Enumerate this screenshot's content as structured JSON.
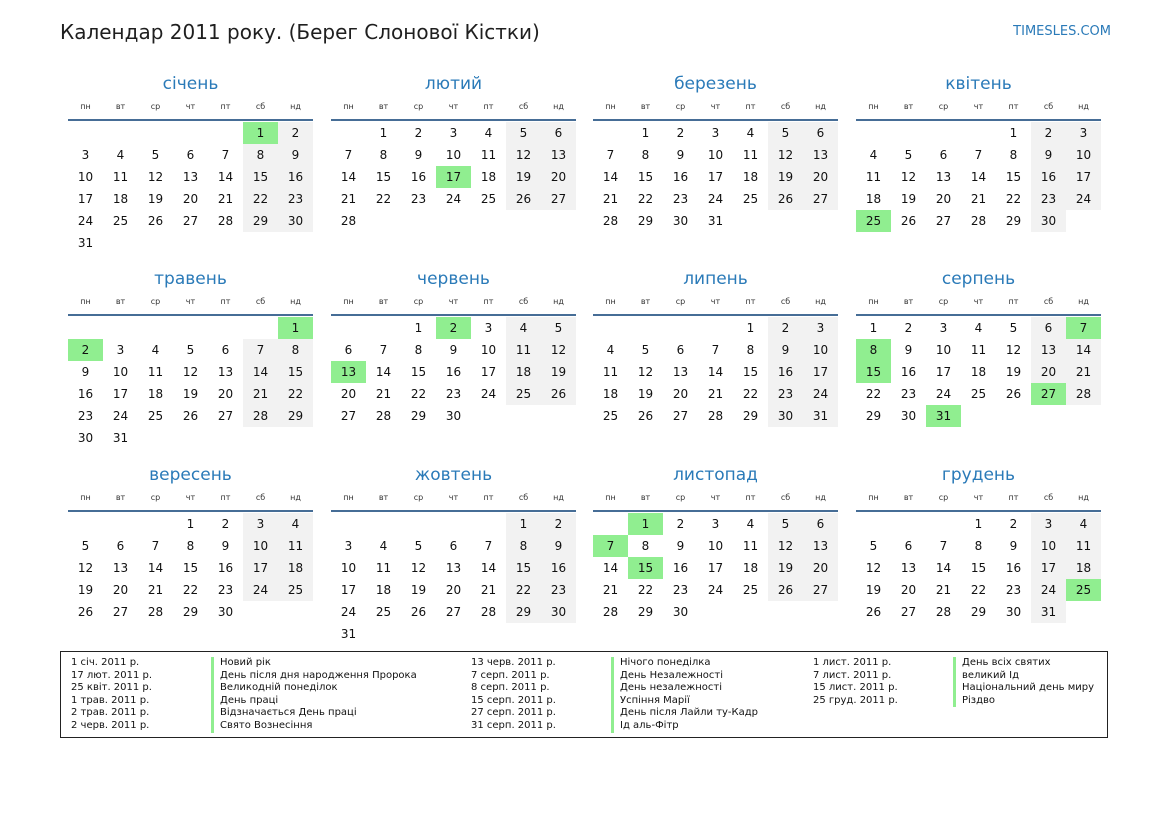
{
  "header": {
    "title": "Календар 2011 року. (Берег Слонової Кістки)",
    "site_link": "TIMESLES.COM"
  },
  "colors": {
    "accent": "#2a7ab8",
    "holiday": "#90ee90",
    "weekend": "#f2f2f2",
    "rule": "#466d96"
  },
  "weekdays": [
    "пн",
    "вт",
    "ср",
    "чт",
    "пт",
    "сб",
    "нд"
  ],
  "months": [
    {
      "name": "січень",
      "offset": 5,
      "days": 31,
      "holidays": [
        1
      ]
    },
    {
      "name": "лютий",
      "offset": 1,
      "days": 28,
      "holidays": [
        17
      ]
    },
    {
      "name": "березень",
      "offset": 1,
      "days": 31,
      "holidays": []
    },
    {
      "name": "квітень",
      "offset": 4,
      "days": 30,
      "holidays": [
        25
      ]
    },
    {
      "name": "травень",
      "offset": 6,
      "days": 31,
      "holidays": [
        1,
        2
      ]
    },
    {
      "name": "червень",
      "offset": 2,
      "days": 30,
      "holidays": [
        2,
        13
      ]
    },
    {
      "name": "липень",
      "offset": 4,
      "days": 31,
      "holidays": []
    },
    {
      "name": "серпень",
      "offset": 0,
      "days": 31,
      "holidays": [
        7,
        8,
        15,
        27,
        31
      ]
    },
    {
      "name": "вересень",
      "offset": 3,
      "days": 30,
      "holidays": []
    },
    {
      "name": "жовтень",
      "offset": 5,
      "days": 31,
      "holidays": []
    },
    {
      "name": "листопад",
      "offset": 1,
      "days": 30,
      "holidays": [
        1,
        7,
        15
      ]
    },
    {
      "name": "грудень",
      "offset": 3,
      "days": 31,
      "holidays": [
        25
      ]
    }
  ],
  "legend": [
    [
      {
        "date": "1 січ. 2011 р.",
        "name": "Новий рік"
      },
      {
        "date": "17 лют. 2011 р.",
        "name": "День після дня народження Пророка"
      },
      {
        "date": "25 квіт. 2011 р.",
        "name": "Великодній понеділок"
      },
      {
        "date": "1 трав. 2011 р.",
        "name": "День праці"
      },
      {
        "date": "2 трав. 2011 р.",
        "name": "Відзначається День праці"
      },
      {
        "date": "2 черв. 2011 р.",
        "name": "Свято Вознесіння"
      }
    ],
    [
      {
        "date": "13 черв. 2011 р.",
        "name": "Нічого понеділка"
      },
      {
        "date": "7 серп. 2011 р.",
        "name": "День Незалежності"
      },
      {
        "date": "8 серп. 2011 р.",
        "name": "День незалежності"
      },
      {
        "date": "15 серп. 2011 р.",
        "name": "Успіння Марії"
      },
      {
        "date": "27 серп. 2011 р.",
        "name": "День після Лайли ту-Кадр"
      },
      {
        "date": "31 серп. 2011 р.",
        "name": "Ід аль-Фітр"
      }
    ],
    [
      {
        "date": "1 лист. 2011 р.",
        "name": "День всіх святих"
      },
      {
        "date": "7 лист. 2011 р.",
        "name": "великий Ід"
      },
      {
        "date": "15 лист. 2011 р.",
        "name": "Національний день миру"
      },
      {
        "date": "25 груд. 2011 р.",
        "name": "Різдво"
      }
    ]
  ]
}
